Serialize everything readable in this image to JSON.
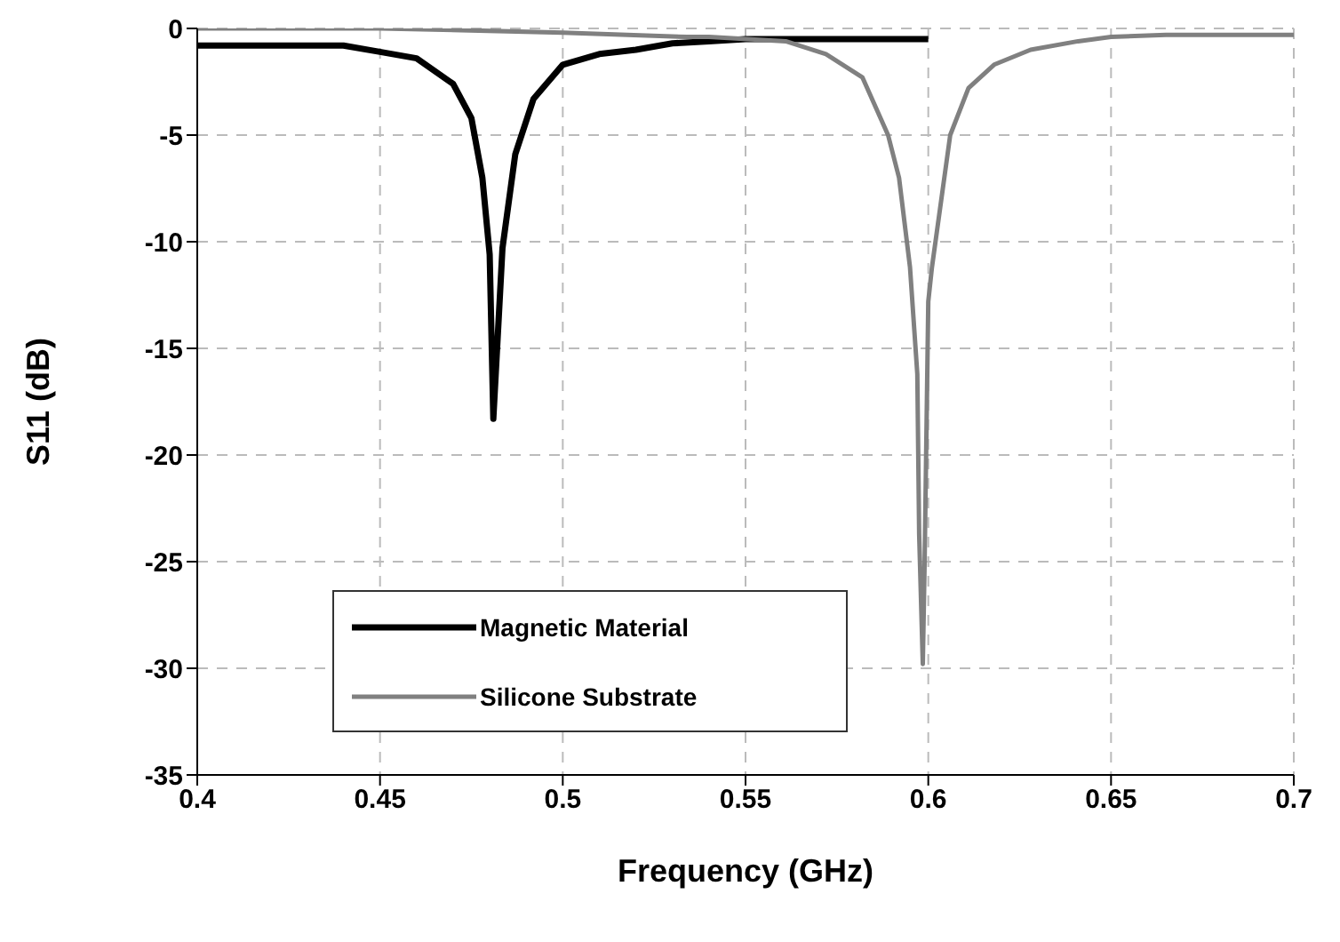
{
  "chart_data": {
    "type": "line",
    "xlabel": "Frequency (GHz)",
    "ylabel": "S11 (dB)",
    "xlim": [
      0.4,
      0.7
    ],
    "xticks": [
      0.4,
      0.45,
      0.5,
      0.55,
      0.6,
      0.65,
      0.7
    ],
    "ylim": [
      -35,
      0
    ],
    "yticks": [
      -35,
      -30,
      -25,
      -20,
      -15,
      -10,
      -5,
      0
    ],
    "grid": true,
    "legend": "bottom",
    "marker": "none",
    "line_style": "solid",
    "series": [
      {
        "name": "Magnetic Material",
        "color": "#000000",
        "x": [
          0.4,
          0.42,
          0.44,
          0.45,
          0.46,
          0.47,
          0.475,
          0.478,
          0.48,
          0.481,
          0.4835,
          0.487,
          0.492,
          0.5,
          0.51,
          0.52,
          0.53,
          0.54,
          0.55,
          0.57,
          0.6
        ],
        "values": [
          -0.8,
          -0.8,
          -0.8,
          -1.1,
          -1.4,
          -2.6,
          -4.2,
          -7,
          -10.6,
          -18.3,
          -10.3,
          -5.9,
          -3.3,
          -1.7,
          -1.2,
          -1,
          -0.7,
          -0.6,
          -0.5,
          -0.5,
          -0.5
        ]
      },
      {
        "name": "Silicone Substrate",
        "color": "#808080",
        "x": [
          0.4,
          0.45,
          0.477,
          0.5,
          0.534,
          0.54,
          0.561,
          0.572,
          0.582,
          0.589,
          0.592,
          0.595,
          0.597,
          0.5975,
          0.5985,
          0.599,
          0.6,
          0.601,
          0.606,
          0.611,
          0.618,
          0.628,
          0.641,
          0.65,
          0.665,
          0.7
        ],
        "values": [
          0,
          0,
          -0.1,
          -0.2,
          -0.4,
          -0.4,
          -0.6,
          -1.2,
          -2.3,
          -5,
          -7,
          -11.2,
          -16.2,
          -23.7,
          -29.8,
          -25,
          -12.8,
          -11.2,
          -5,
          -2.8,
          -1.7,
          -1,
          -0.6,
          -0.4,
          -0.3,
          -0.3
        ]
      }
    ]
  }
}
